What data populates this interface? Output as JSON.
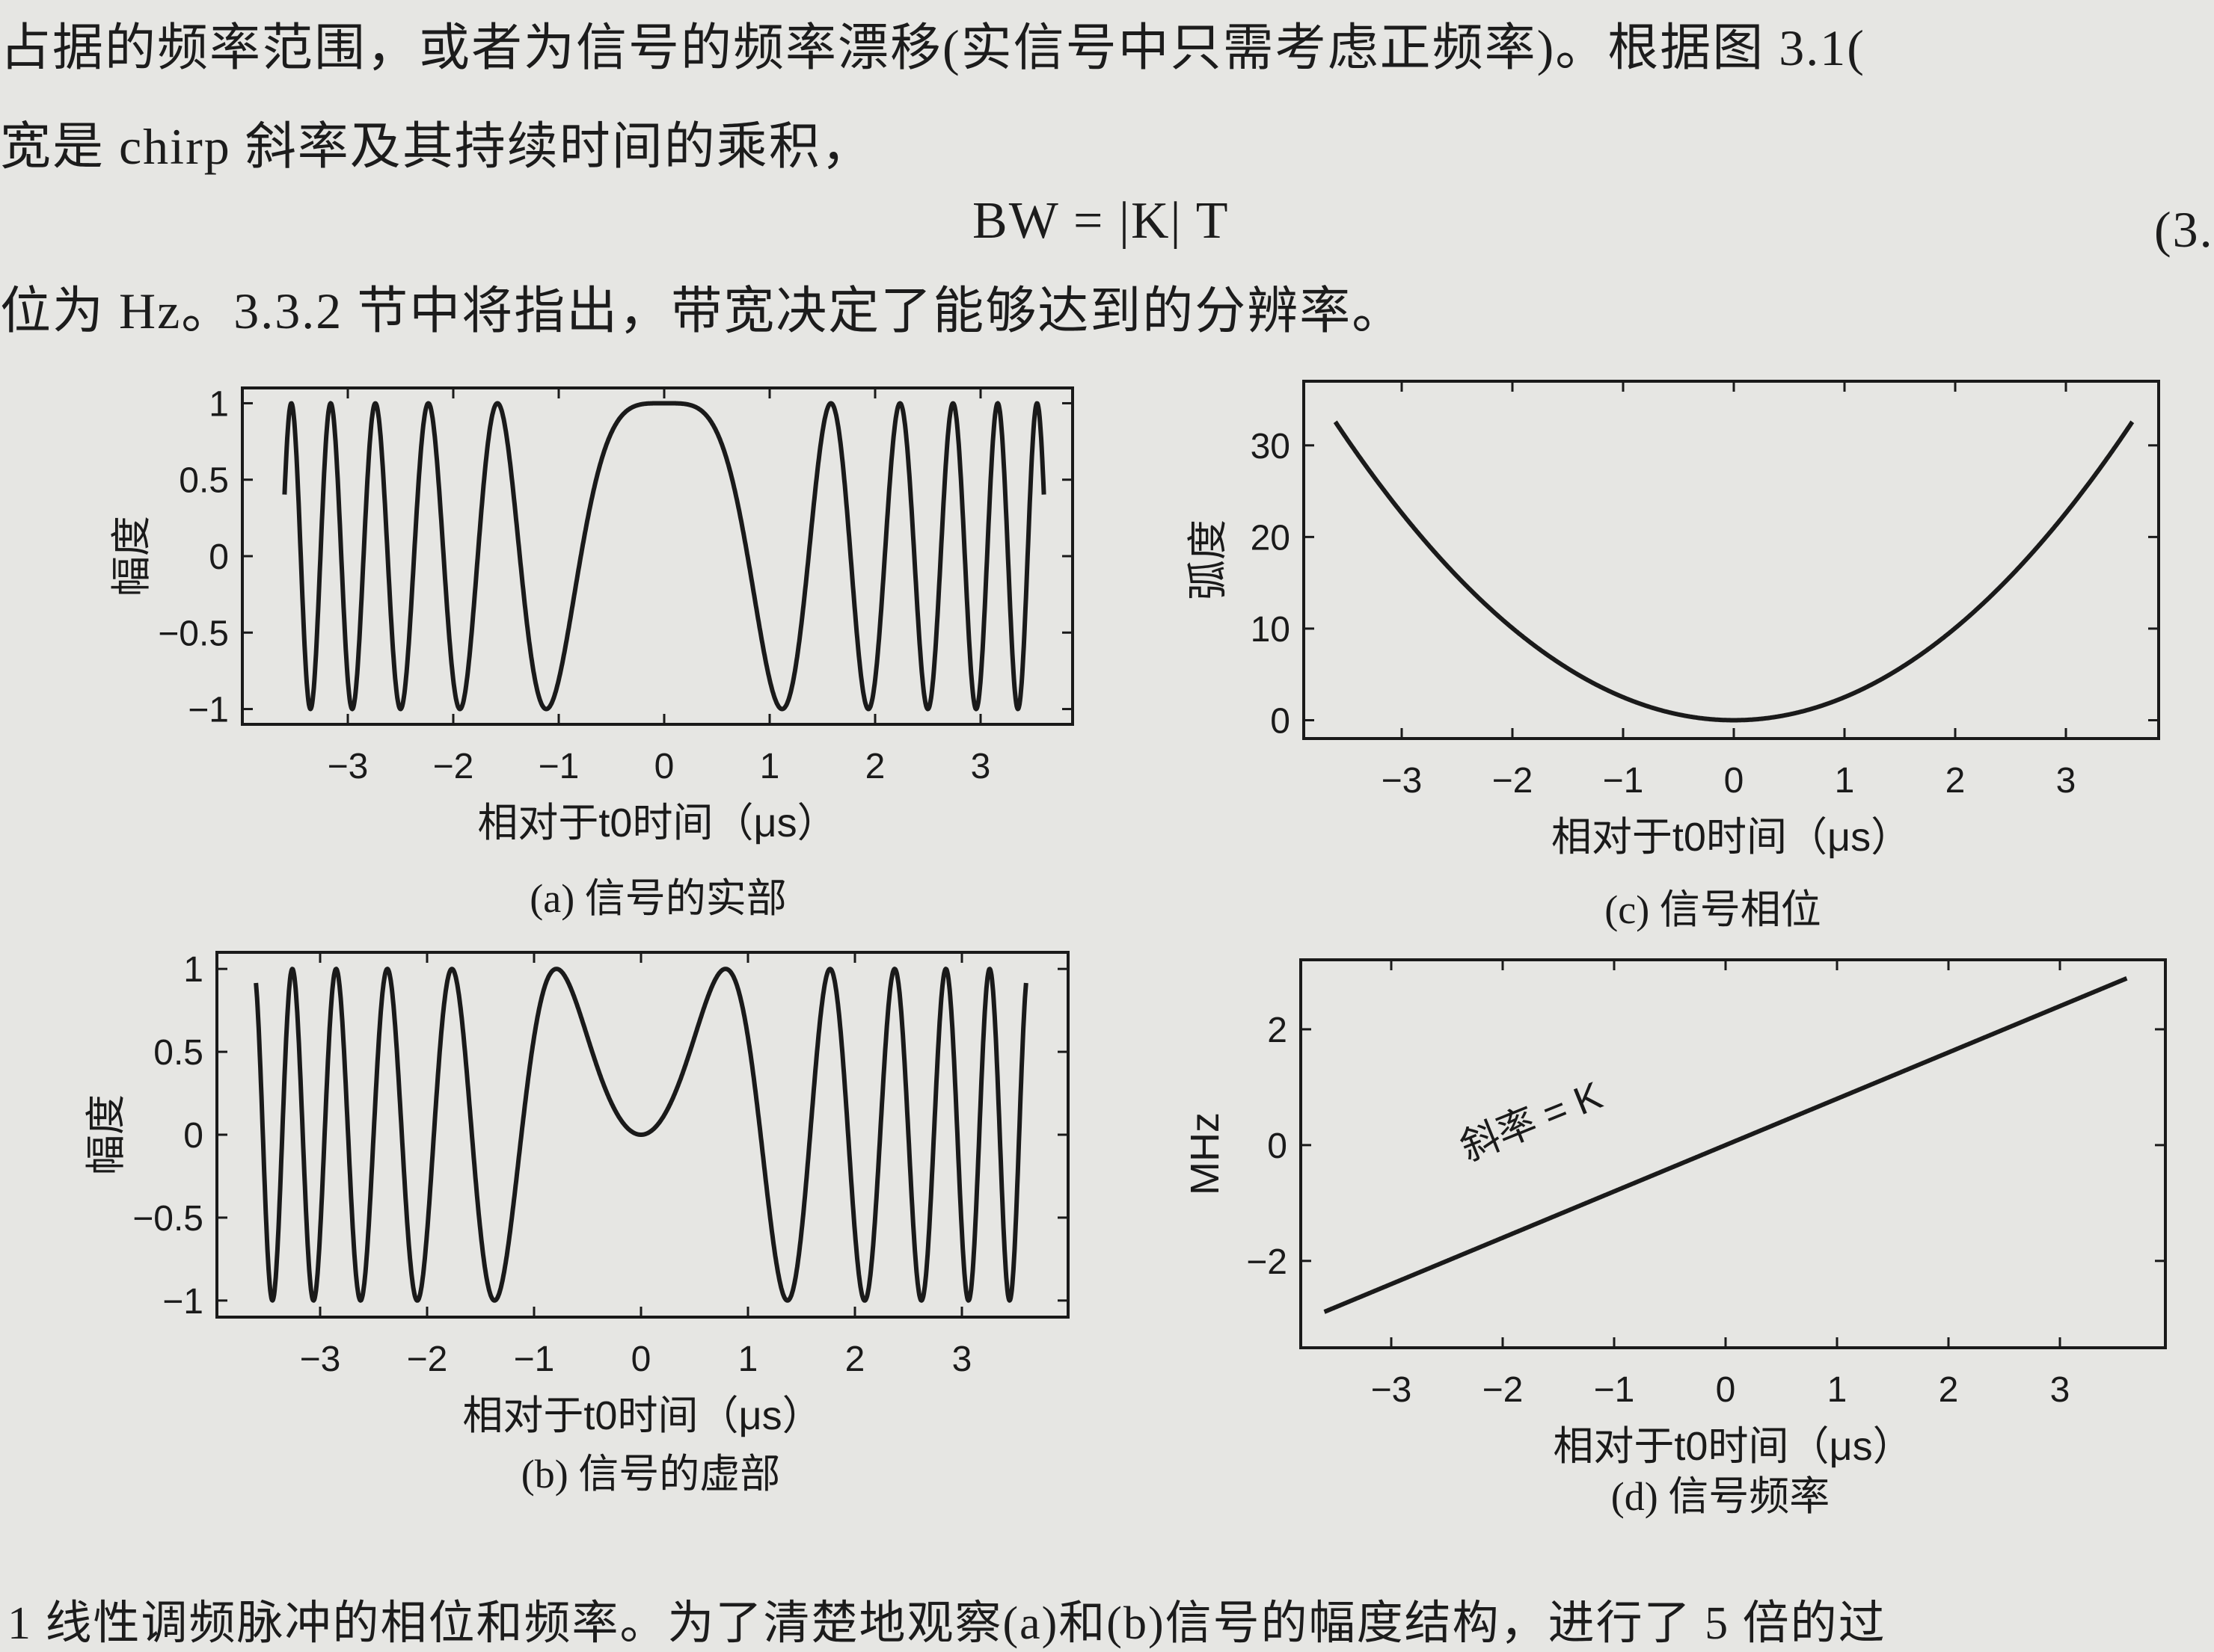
{
  "text": {
    "line1": "占据的频率范围，或者为信号的频率漂移(实信号中只需考虑正频率)。根据图 3.1(",
    "line2": "宽是 chirp 斜率及其持续时间的乘积，",
    "formula": "BW = |K| T",
    "eq_number": "(3.",
    "line4": "位为 Hz。3.3.2 节中将指出，带宽决定了能够达到的分辨率。",
    "caption_bottom": "1   线性调频脉冲的相位和频率。为了清楚地观察(a)和(b)信号的幅度结构，进行了 5 倍的过"
  },
  "chart_data": [
    {
      "id": "a",
      "type": "line",
      "caption": "(a) 信号的实部",
      "xlabel": "相对于t0时间（μs）",
      "ylabel": "幅度",
      "function": "cos(pi*K*t^2)",
      "K_MHz_per_us": 0.8,
      "t_range": [
        -3.6,
        3.6
      ],
      "xlim": [
        -3.9,
        3.9
      ],
      "ylim": [
        -1.1,
        1.1
      ],
      "xticks": [
        "-3",
        "-2",
        "-1",
        "0",
        "1",
        "2",
        "3"
      ],
      "xtick_values": [
        -3,
        -2,
        -1,
        0,
        1,
        2,
        3
      ],
      "yticks": [
        "1",
        "0.5",
        "0",
        "-0.5",
        "-1"
      ],
      "ytick_values": [
        1,
        0.5,
        0,
        -0.5,
        -1
      ],
      "grid": false
    },
    {
      "id": "b",
      "type": "line",
      "caption": "(b) 信号的虚部",
      "xlabel": "相对于t0时间（μs）",
      "ylabel": "幅度",
      "function": "sin(pi*K*t^2)",
      "K_MHz_per_us": 0.8,
      "t_range": [
        -3.6,
        3.6
      ],
      "xlim": [
        -3.9,
        3.9
      ],
      "ylim": [
        -1.1,
        1.1
      ],
      "xticks": [
        "-3",
        "-2",
        "-1",
        "0",
        "1",
        "2",
        "3"
      ],
      "xtick_values": [
        -3,
        -2,
        -1,
        0,
        1,
        2,
        3
      ],
      "yticks": [
        "1",
        "0.5",
        "0",
        "-0.5",
        "-1"
      ],
      "ytick_values": [
        1,
        0.5,
        0,
        -0.5,
        -1
      ],
      "grid": false
    },
    {
      "id": "c",
      "type": "line",
      "caption": "(c) 信号相位",
      "xlabel": "相对于t0时间（μs）",
      "ylabel": "弧度",
      "function": "pi*K*t^2",
      "K_MHz_per_us": 0.8,
      "t_range": [
        -3.6,
        3.6
      ],
      "xlim": [
        -3.9,
        3.9
      ],
      "ylim": [
        -2,
        37
      ],
      "xticks": [
        "-3",
        "-2",
        "-1",
        "0",
        "1",
        "2",
        "3"
      ],
      "xtick_values": [
        -3,
        -2,
        -1,
        0,
        1,
        2,
        3
      ],
      "yticks": [
        "30",
        "20",
        "10",
        "0"
      ],
      "ytick_values": [
        30,
        20,
        10,
        0
      ],
      "grid": false
    },
    {
      "id": "d",
      "type": "line",
      "caption": "(d) 信号频率",
      "xlabel": "相对于t0时间（μs）",
      "ylabel": "MHz",
      "function": "K*t",
      "K_MHz_per_us": 0.8,
      "t_range": [
        -3.6,
        3.6
      ],
      "xlim": [
        -3.9,
        3.9
      ],
      "ylim": [
        -3.5,
        3.2
      ],
      "xticks": [
        "-3",
        "-2",
        "-1",
        "0",
        "1",
        "2",
        "3"
      ],
      "xtick_values": [
        -3,
        -2,
        -1,
        0,
        1,
        2,
        3
      ],
      "yticks": [
        "2",
        "0",
        "-2"
      ],
      "ytick_values": [
        2,
        0,
        -2
      ],
      "annotation": "斜率 = K",
      "grid": false
    }
  ],
  "colors": {
    "page": "#e6e6e3",
    "ink": "#1a1a1a"
  }
}
